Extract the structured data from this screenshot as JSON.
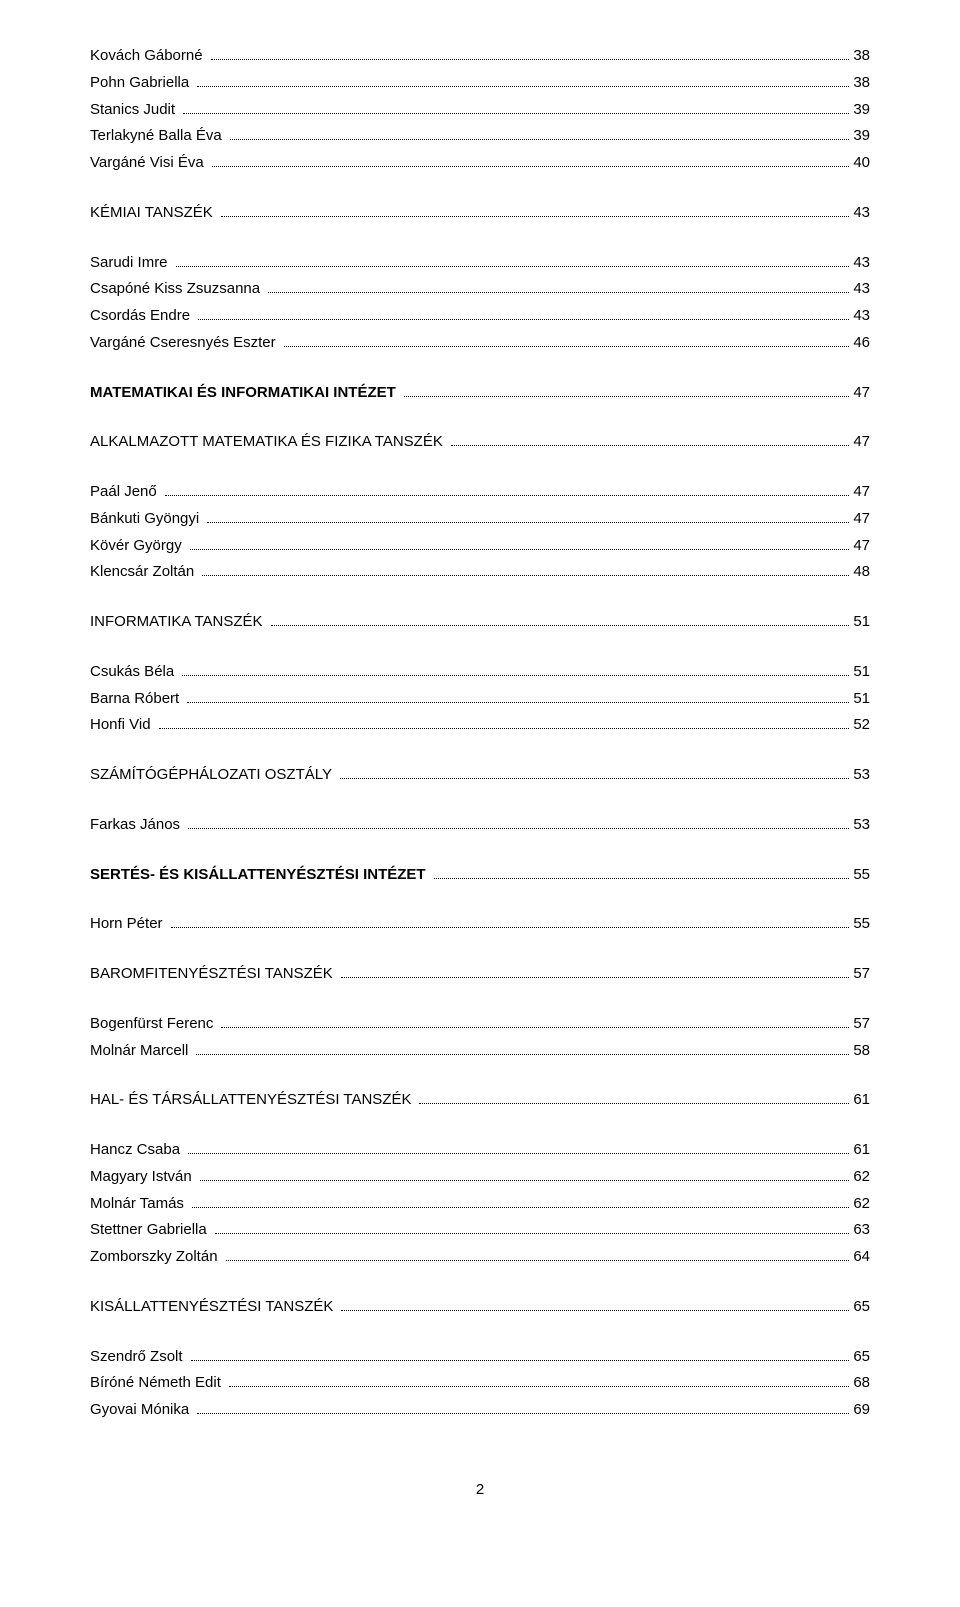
{
  "page_number": "2",
  "entries": [
    {
      "level": "h3",
      "label": "Kovách Gáborné",
      "page": "38"
    },
    {
      "level": "h3",
      "label": "Pohn Gabriella",
      "page": "38"
    },
    {
      "level": "h3",
      "label": "Stanics Judit",
      "page": "39"
    },
    {
      "level": "h3",
      "label": "Terlakyné Balla Éva",
      "page": "39"
    },
    {
      "level": "h3",
      "label": "Vargáné Visi Éva",
      "page": "40"
    },
    {
      "gap": "med"
    },
    {
      "level": "h2",
      "label": "KÉMIAI TANSZÉK",
      "page": "43"
    },
    {
      "gap": "med"
    },
    {
      "level": "h3",
      "label": "Sarudi Imre",
      "page": "43"
    },
    {
      "level": "h3",
      "label": "Csapóné Kiss Zsuzsanna",
      "page": "43"
    },
    {
      "level": "h3",
      "label": "Csordás Endre",
      "page": "43"
    },
    {
      "level": "h3",
      "label": "Vargáné Cseresnyés Eszter",
      "page": "46"
    },
    {
      "gap": "med"
    },
    {
      "level": "h1",
      "label": "MATEMATIKAI ÉS INFORMATIKAI INTÉZET",
      "page": "47"
    },
    {
      "gap": "med"
    },
    {
      "level": "h2",
      "label": "ALKALMAZOTT MATEMATIKA ÉS FIZIKA TANSZÉK",
      "page": "47"
    },
    {
      "gap": "med"
    },
    {
      "level": "h3",
      "label": "Paál Jenő",
      "page": "47"
    },
    {
      "level": "h3",
      "label": "Bánkuti Gyöngyi",
      "page": "47"
    },
    {
      "level": "h3",
      "label": "Kövér György",
      "page": "47"
    },
    {
      "level": "h3",
      "label": "Klencsár Zoltán",
      "page": "48"
    },
    {
      "gap": "med"
    },
    {
      "level": "h2",
      "label": "INFORMATIKA TANSZÉK",
      "page": "51"
    },
    {
      "gap": "med"
    },
    {
      "level": "h3",
      "label": "Csukás Béla",
      "page": "51"
    },
    {
      "level": "h3",
      "label": "Barna Róbert",
      "page": "51"
    },
    {
      "level": "h3",
      "label": "Honfi Vid",
      "page": "52"
    },
    {
      "gap": "med"
    },
    {
      "level": "h2",
      "label": "SZÁMÍTÓGÉPHÁLOZATI OSZTÁLY",
      "page": "53"
    },
    {
      "gap": "med"
    },
    {
      "level": "h3",
      "label": "Farkas János",
      "page": "53"
    },
    {
      "gap": "med"
    },
    {
      "level": "h1",
      "label": "SERTÉS- ÉS KISÁLLATTENYÉSZTÉSI INTÉZET",
      "page": "55"
    },
    {
      "gap": "med"
    },
    {
      "level": "h3",
      "label": "Horn Péter",
      "page": "55"
    },
    {
      "gap": "med"
    },
    {
      "level": "h2",
      "label": "BAROMFITENYÉSZTÉSI TANSZÉK",
      "page": "57"
    },
    {
      "gap": "med"
    },
    {
      "level": "h3",
      "label": "Bogenfürst Ferenc",
      "page": "57"
    },
    {
      "level": "h3",
      "label": "Molnár Marcell",
      "page": "58"
    },
    {
      "gap": "med"
    },
    {
      "level": "h2",
      "label": "HAL- ÉS TÁRSÁLLATTENYÉSZTÉSI TANSZÉK",
      "page": "61"
    },
    {
      "gap": "med"
    },
    {
      "level": "h3",
      "label": "Hancz Csaba",
      "page": "61"
    },
    {
      "level": "h3",
      "label": "Magyary István",
      "page": "62"
    },
    {
      "level": "h3",
      "label": "Molnár Tamás",
      "page": "62"
    },
    {
      "level": "h3",
      "label": "Stettner Gabriella",
      "page": "63"
    },
    {
      "level": "h3",
      "label": "Zomborszky Zoltán",
      "page": "64"
    },
    {
      "gap": "med"
    },
    {
      "level": "h2",
      "label": "KISÁLLATTENYÉSZTÉSI TANSZÉK",
      "page": "65"
    },
    {
      "gap": "med"
    },
    {
      "level": "h3",
      "label": "Szendrő Zsolt",
      "page": "65"
    },
    {
      "level": "h3",
      "label": "Bíróné Németh Edit",
      "page": "68"
    },
    {
      "level": "h3",
      "label": "Gyovai Mónika",
      "page": "69"
    }
  ]
}
